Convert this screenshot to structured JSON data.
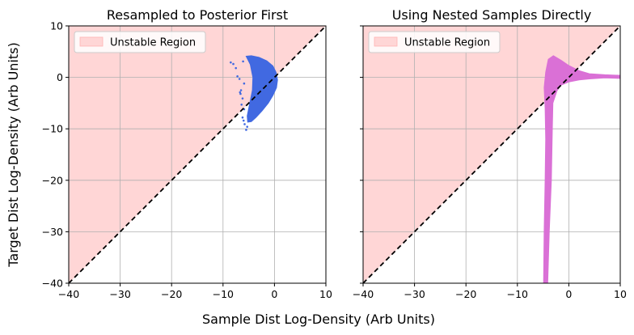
{
  "supxlabel": "Sample Dist Log-Density (Arb Units)",
  "supylabel": "Target Dist Log-Density (Arb Units)",
  "chart_data": [
    {
      "type": "scatter",
      "title": "Resampled to Posterior First",
      "xlim": [
        -40,
        10
      ],
      "ylim": [
        -40,
        10
      ],
      "xticks": [
        -40,
        -30,
        -20,
        -10,
        0,
        10
      ],
      "yticks": [
        -40,
        -30,
        -20,
        -10,
        0,
        10
      ],
      "xtick_labels": [
        "−40",
        "−30",
        "−20",
        "−10",
        "0",
        "10"
      ],
      "ytick_labels": [
        "−40",
        "−30",
        "−20",
        "−10",
        "0",
        "10"
      ],
      "grid": true,
      "legend": {
        "placement": "top-left",
        "entries": [
          "Unstable Region"
        ]
      },
      "unstable_region_color": "#ffd6d6",
      "diagonal_line_color": "#000000",
      "series": [
        {
          "color": "#4169e1",
          "shape": "crescent",
          "outline": [
            [
              -5.5,
              4.1
            ],
            [
              -4.5,
              4.2
            ],
            [
              -3,
              3.9
            ],
            [
              -1.5,
              3.2
            ],
            [
              -0.3,
              2.2
            ],
            [
              0.3,
              1.0
            ],
            [
              0.6,
              -0.5
            ],
            [
              0.4,
              -2.0
            ],
            [
              -0.3,
              -3.5
            ],
            [
              -1.2,
              -5
            ],
            [
              -2.4,
              -6.5
            ],
            [
              -3.6,
              -7.8
            ],
            [
              -4.5,
              -8.6
            ],
            [
              -5.2,
              -8.7
            ],
            [
              -5.3,
              -7.5
            ],
            [
              -4.8,
              -5
            ],
            [
              -4.3,
              -2.5
            ],
            [
              -4.2,
              0
            ],
            [
              -4.7,
              2.5
            ],
            [
              -5.5,
              4.1
            ]
          ],
          "outliers": [
            [
              -8.5,
              2.9
            ],
            [
              -8,
              2.6
            ],
            [
              -7.2,
              0.2
            ],
            [
              -6.8,
              -0.3
            ],
            [
              -6.5,
              -2.5
            ],
            [
              -6.6,
              -3.2
            ],
            [
              -6.2,
              -4.1
            ],
            [
              -6.4,
              -5.3
            ],
            [
              -5.9,
              -6.2
            ],
            [
              -6.2,
              -7.8
            ],
            [
              -6.0,
              -8.4
            ],
            [
              -5.8,
              -9.1
            ],
            [
              -5.5,
              -10.2
            ],
            [
              -5.3,
              -9.6
            ],
            [
              -6.7,
              -2.9
            ],
            [
              -7.5,
              1.8
            ],
            [
              -5.9,
              -1.2
            ],
            [
              -6.1,
              3.1
            ]
          ]
        }
      ]
    },
    {
      "type": "scatter",
      "title": "Using Nested Samples Directly",
      "xlim": [
        -40,
        10
      ],
      "ylim": [
        -40,
        10
      ],
      "xticks": [
        -40,
        -30,
        -20,
        -10,
        0,
        10
      ],
      "yticks": [
        -40,
        -30,
        -20,
        -10,
        0,
        10
      ],
      "xtick_labels": [
        "−40",
        "−30",
        "−20",
        "−10",
        "0",
        "10"
      ],
      "grid": true,
      "legend": {
        "placement": "top-left",
        "entries": [
          "Unstable Region"
        ]
      },
      "unstable_region_color": "#ffd6d6",
      "diagonal_line_color": "#000000",
      "series": [
        {
          "color": "#da70d6",
          "shape": "funnel",
          "outline": [
            [
              -4.9,
              -40
            ],
            [
              -4.8,
              -30
            ],
            [
              -4.6,
              -20
            ],
            [
              -4.5,
              -12
            ],
            [
              -4.6,
              -6
            ],
            [
              -4.8,
              -2
            ],
            [
              -4.5,
              1
            ],
            [
              -4.0,
              3.5
            ],
            [
              -3.0,
              4.2
            ],
            [
              -1.5,
              3.3
            ],
            [
              0,
              2.3
            ],
            [
              2,
              1.3
            ],
            [
              4,
              0.7
            ],
            [
              7,
              0.5
            ],
            [
              10,
              0.4
            ],
            [
              10,
              -0.2
            ],
            [
              7,
              -0.1
            ],
            [
              4,
              -0.3
            ],
            [
              2,
              -0.5
            ],
            [
              0,
              -0.9
            ],
            [
              -1.5,
              -1.5
            ],
            [
              -2.3,
              -2.6
            ],
            [
              -3.1,
              -5
            ],
            [
              -3.2,
              -10
            ],
            [
              -3.4,
              -20
            ],
            [
              -3.8,
              -30
            ],
            [
              -4.1,
              -40
            ]
          ]
        }
      ]
    }
  ]
}
